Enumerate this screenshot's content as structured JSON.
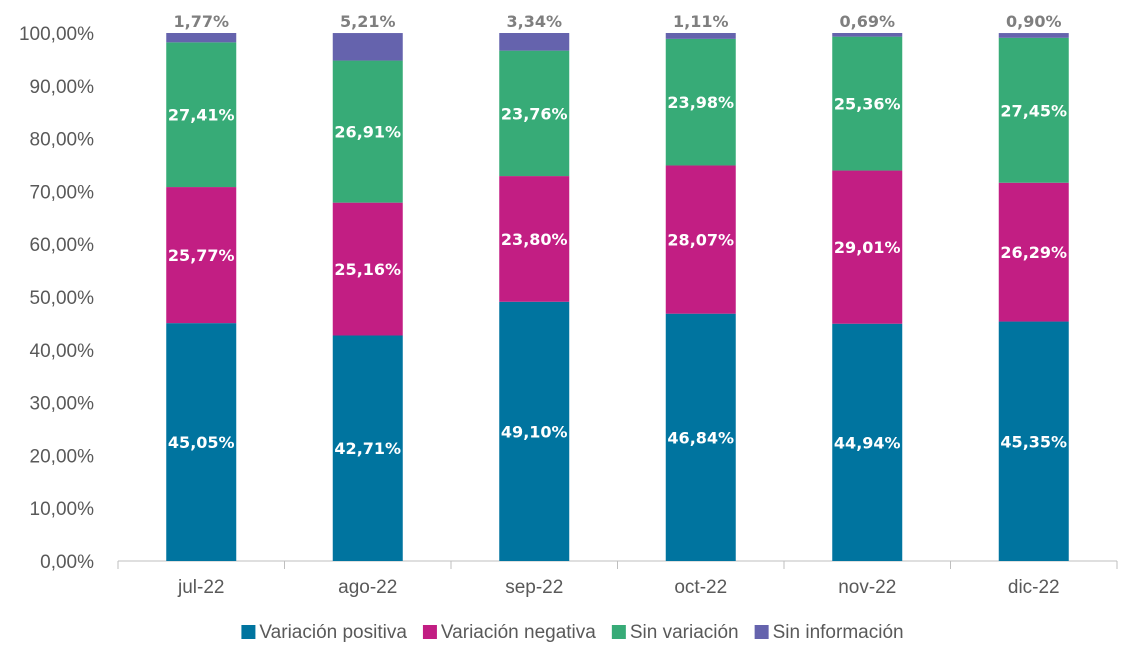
{
  "chart_data": {
    "type": "bar",
    "stacked": true,
    "title": "",
    "xlabel": "",
    "ylabel": "",
    "ylim": [
      0,
      100
    ],
    "y_ticks": [
      "0,00%",
      "10,00%",
      "20,00%",
      "30,00%",
      "40,00%",
      "50,00%",
      "60,00%",
      "70,00%",
      "80,00%",
      "90,00%",
      "100,00%"
    ],
    "categories": [
      "jul-22",
      "ago-22",
      "sep-22",
      "oct-22",
      "nov-22",
      "dic-22"
    ],
    "series": [
      {
        "name": "Variación positiva",
        "color": "#00749f",
        "values": [
          45.05,
          42.71,
          49.1,
          46.84,
          44.94,
          45.35
        ],
        "labels": [
          "45,05%",
          "42,71%",
          "49,10%",
          "46,84%",
          "44,94%",
          "45,35%"
        ]
      },
      {
        "name": "Variación negativa",
        "color": "#c21e83",
        "values": [
          25.77,
          25.16,
          23.8,
          28.07,
          29.01,
          26.29
        ],
        "labels": [
          "25,77%",
          "25,16%",
          "23,80%",
          "28,07%",
          "29,01%",
          "26,29%"
        ]
      },
      {
        "name": "Sin variación",
        "color": "#37ab77",
        "values": [
          27.41,
          26.91,
          23.76,
          23.98,
          25.36,
          27.45
        ],
        "labels": [
          "27,41%",
          "26,91%",
          "23,76%",
          "23,98%",
          "25,36%",
          "27,45%"
        ]
      },
      {
        "name": "Sin información",
        "color": "#6563ad",
        "values": [
          1.77,
          5.21,
          3.34,
          1.11,
          0.69,
          0.9
        ],
        "labels": [
          "1,77%",
          "5,21%",
          "3,34%",
          "1,11%",
          "0,69%",
          "0,90%"
        ]
      }
    ],
    "grid": false,
    "legend_position": "bottom"
  }
}
